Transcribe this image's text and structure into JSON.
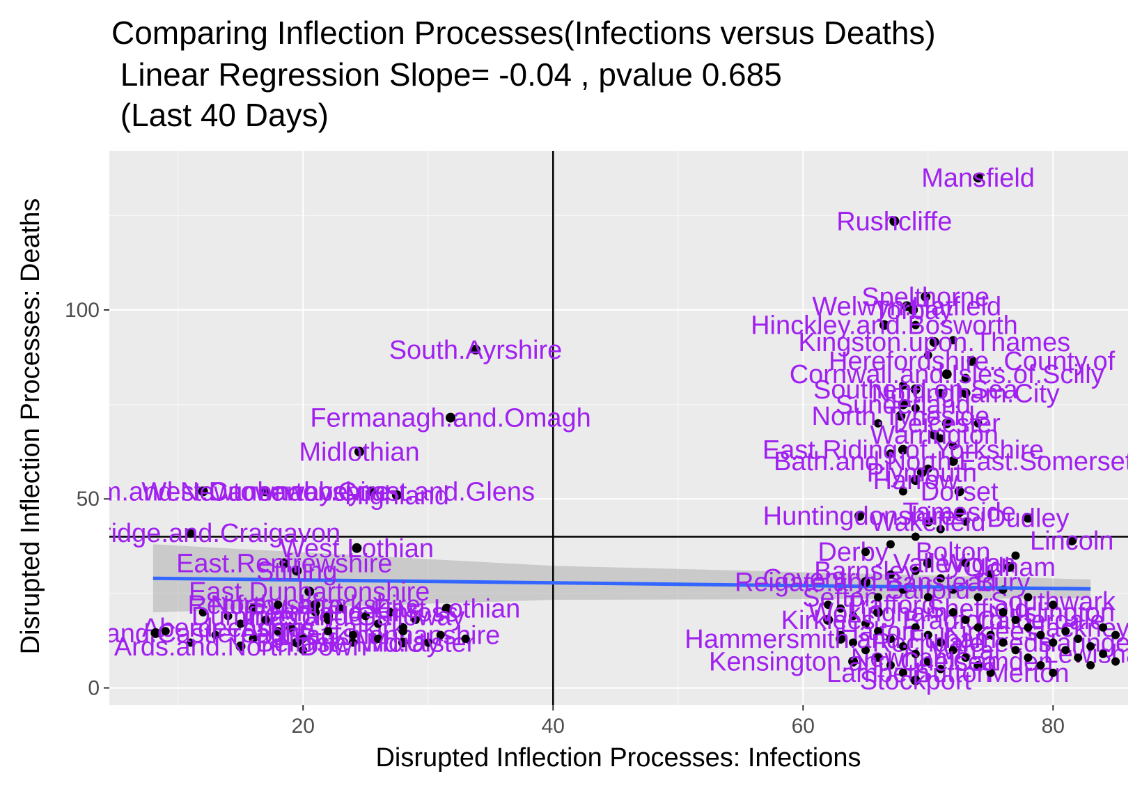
{
  "chart_data": {
    "type": "scatter",
    "title": "Comparing Inflection Processes(Infections versus Deaths)",
    "subtitle": " Linear Regression Slope= -0.04 , pvalue 0.685",
    "subtitle2": " (Last 40 Days)",
    "xlabel": "Disrupted Inflection Processes: Infections",
    "ylabel": "Disrupted Inflection Processes: Deaths",
    "xlim": [
      4.5,
      86
    ],
    "ylim": [
      -4.5,
      142
    ],
    "xticks": [
      20,
      40,
      60,
      80
    ],
    "yticks": [
      0,
      50,
      100
    ],
    "vline": 40,
    "hline": 40,
    "grid": true,
    "label_color": "#a020f0",
    "point_color": "#000000",
    "regression": {
      "x": [
        8,
        83
      ],
      "y": [
        29,
        26.2
      ],
      "color": "#3366ff",
      "ci_start": [
        18,
        40
      ],
      "ci_mid": [
        26,
        32
      ],
      "ci_end": [
        24,
        28.5
      ]
    },
    "labeled_points": [
      {
        "x": 74,
        "y": 135,
        "label": "Mansfield"
      },
      {
        "x": 67.3,
        "y": 123.5,
        "label": "Rushcliffe"
      },
      {
        "x": 69.8,
        "y": 103.5,
        "label": "Spelthorne"
      },
      {
        "x": 68.3,
        "y": 101,
        "label": "Welwyn.Hatfield"
      },
      {
        "x": 68.8,
        "y": 100,
        "label": "Torbay"
      },
      {
        "x": 66.5,
        "y": 96,
        "label": "Hinckley.and.Bosworth"
      },
      {
        "x": 33.8,
        "y": 89.5,
        "label": "South.Ayrshire"
      },
      {
        "x": 70.5,
        "y": 91.5,
        "label": "Kingston.upon.Thames"
      },
      {
        "x": 73.5,
        "y": 86.5,
        "label": "Herefordshire..County.of"
      },
      {
        "x": 71.5,
        "y": 83,
        "label": "Cornwall.and.Isles.of.Scilly"
      },
      {
        "x": 69,
        "y": 79,
        "label": "Southend.on.Sea"
      },
      {
        "x": 73,
        "y": 78,
        "label": "Nottingham.City"
      },
      {
        "x": 68,
        "y": 75,
        "label": "Sunderland"
      },
      {
        "x": 31.8,
        "y": 71.5,
        "label": "Fermanagh.and.Omagh"
      },
      {
        "x": 67.8,
        "y": 72,
        "label": "North.Tyneside"
      },
      {
        "x": 71.5,
        "y": 70,
        "label": "Leicester"
      },
      {
        "x": 70.5,
        "y": 67,
        "label": "Warrington"
      },
      {
        "x": 24.5,
        "y": 62.5,
        "label": "Midlothian"
      },
      {
        "x": 68,
        "y": 63,
        "label": "East.Riding.of.Yorkshire"
      },
      {
        "x": 72,
        "y": 60,
        "label": "Bath.and.North.East.Somerset"
      },
      {
        "x": 69.5,
        "y": 57,
        "label": "Plymouth"
      },
      {
        "x": 69,
        "y": 55,
        "label": "Harrow"
      },
      {
        "x": 72.5,
        "y": 52,
        "label": "Dorset"
      },
      {
        "x": 12,
        "y": 52,
        "label": "Antrim.and.Newtownabbey"
      },
      {
        "x": 17,
        "y": 52,
        "label": "West.Dunbartonshire"
      },
      {
        "x": 25.5,
        "y": 52,
        "label": "Causeway.Coast.and.Glens"
      },
      {
        "x": 27.5,
        "y": 51,
        "label": "Highland"
      },
      {
        "x": 64.5,
        "y": 45.5,
        "label": "Huntingdonshire"
      },
      {
        "x": 72.5,
        "y": 46.5,
        "label": "Tameside"
      },
      {
        "x": 78,
        "y": 45,
        "label": "Dudley"
      },
      {
        "x": 70,
        "y": 44,
        "label": "Wakefield"
      },
      {
        "x": 81.5,
        "y": 39,
        "label": "Lincoln"
      },
      {
        "x": 11,
        "y": 41,
        "label": "Banbridge.and.Craigavon"
      },
      {
        "x": 24.3,
        "y": 37,
        "label": "West.Lothian"
      },
      {
        "x": 18.5,
        "y": 33,
        "label": "East.Renfrewshire"
      },
      {
        "x": 19.5,
        "y": 31,
        "label": "Stirling"
      },
      {
        "x": 70,
        "y": 33,
        "label": "Valley"
      },
      {
        "x": 76.5,
        "y": 32,
        "label": "Oldham"
      },
      {
        "x": 65,
        "y": 28,
        "label": "Reigate.and.Banstead"
      },
      {
        "x": 20.5,
        "y": 25.5,
        "label": "East.Dunbartonshire"
      },
      {
        "x": 21,
        "y": 22,
        "label": "North.Lanarkshire"
      },
      {
        "x": 31.5,
        "y": 21,
        "label": "East.Lothian"
      },
      {
        "x": 22,
        "y": 19,
        "label": "Dumfries.and.Galloway"
      },
      {
        "x": 8.2,
        "y": 14.5,
        "label": "Lisburn.and.Castlereagh"
      },
      {
        "x": 15,
        "y": 11,
        "label": "Ards.and.North.Down"
      },
      {
        "x": 19.5,
        "y": 12,
        "label": "Belfast"
      },
      {
        "x": 28,
        "y": 12,
        "label": "Moray"
      },
      {
        "x": 63,
        "y": 13,
        "label": "Hammersmith.and.Fulham"
      },
      {
        "x": 62,
        "y": 18,
        "label": "Kirklees"
      },
      {
        "x": 66,
        "y": 20,
        "label": "Wokingham"
      },
      {
        "x": 64,
        "y": 7,
        "label": "Kensington.and.Chelsea"
      },
      {
        "x": 69,
        "y": 2,
        "label": "Stockport"
      }
    ],
    "dense_points": [
      [
        62,
        22
      ],
      [
        63,
        21
      ],
      [
        64,
        19
      ],
      [
        65,
        17
      ],
      [
        66,
        15
      ],
      [
        67,
        13
      ],
      [
        68,
        11
      ],
      [
        69,
        9
      ],
      [
        70,
        7
      ],
      [
        71,
        5
      ],
      [
        72,
        20
      ],
      [
        73,
        18
      ],
      [
        74,
        16
      ],
      [
        75,
        14
      ],
      [
        76,
        12
      ],
      [
        77,
        10
      ],
      [
        78,
        8
      ],
      [
        79,
        6
      ],
      [
        80,
        4
      ],
      [
        81,
        15
      ],
      [
        82,
        13
      ],
      [
        83,
        11
      ],
      [
        84,
        9
      ],
      [
        85,
        7
      ],
      [
        63,
        14
      ],
      [
        64,
        12
      ],
      [
        65,
        10
      ],
      [
        66,
        8
      ],
      [
        67,
        6
      ],
      [
        68,
        4
      ],
      [
        69,
        16
      ],
      [
        70,
        14
      ],
      [
        71,
        12
      ],
      [
        72,
        10
      ],
      [
        73,
        8
      ],
      [
        74,
        6
      ],
      [
        75,
        4
      ],
      [
        76,
        20
      ],
      [
        77,
        18
      ],
      [
        78,
        16
      ],
      [
        79,
        14
      ],
      [
        80,
        12
      ],
      [
        81,
        10
      ],
      [
        82,
        8
      ],
      [
        83,
        6
      ],
      [
        84,
        16
      ],
      [
        85,
        14
      ],
      [
        66,
        24
      ],
      [
        68,
        26
      ],
      [
        70,
        24
      ],
      [
        72,
        26
      ],
      [
        74,
        24
      ],
      [
        76,
        26
      ],
      [
        78,
        24
      ],
      [
        80,
        22
      ],
      [
        67,
        30
      ],
      [
        69,
        31
      ],
      [
        71,
        29
      ],
      [
        73,
        33
      ],
      [
        75,
        30
      ],
      [
        77,
        35
      ],
      [
        65,
        36
      ],
      [
        67,
        38
      ],
      [
        69,
        40
      ],
      [
        71,
        42
      ],
      [
        73,
        44
      ],
      [
        68,
        52
      ],
      [
        70,
        58
      ],
      [
        72,
        64
      ],
      [
        74,
        70
      ],
      [
        69,
        74
      ],
      [
        71,
        78
      ],
      [
        73,
        82
      ],
      [
        70,
        88
      ],
      [
        72,
        92
      ],
      [
        69,
        96
      ],
      [
        68,
        80
      ],
      [
        66,
        70
      ],
      [
        67,
        62
      ],
      [
        71,
        66
      ],
      [
        9,
        15
      ],
      [
        11,
        12
      ],
      [
        13,
        14
      ],
      [
        16,
        13
      ],
      [
        18,
        15
      ],
      [
        20,
        13
      ],
      [
        22,
        15
      ],
      [
        24,
        14
      ],
      [
        26,
        13
      ],
      [
        28,
        15
      ],
      [
        30,
        12
      ],
      [
        12,
        20
      ],
      [
        14,
        19
      ],
      [
        16,
        21
      ],
      [
        18,
        22
      ],
      [
        21,
        20
      ],
      [
        23,
        21
      ],
      [
        25,
        19
      ],
      [
        27,
        20
      ],
      [
        29,
        18
      ],
      [
        22,
        18
      ],
      [
        26,
        17
      ],
      [
        28,
        16
      ],
      [
        31,
        14
      ],
      [
        33,
        13
      ],
      [
        15,
        17
      ],
      [
        17,
        18
      ],
      [
        19,
        16
      ],
      [
        24,
        12
      ],
      [
        20,
        10
      ]
    ],
    "bg_labels": [
      {
        "x": 61,
        "y": 29,
        "label": "Coventry"
      },
      {
        "x": 64,
        "y": 36,
        "label": "Derby"
      },
      {
        "x": 65,
        "y": 31,
        "label": "Barnsley"
      },
      {
        "x": 72,
        "y": 36,
        "label": "Bolton"
      },
      {
        "x": 74,
        "y": 33,
        "label": "Wigan"
      },
      {
        "x": 76,
        "y": 28,
        "label": "Bury"
      },
      {
        "x": 63,
        "y": 24,
        "label": "Sefton"
      },
      {
        "x": 70,
        "y": 26,
        "label": "Salford"
      },
      {
        "x": 67,
        "y": 22,
        "label": "Trafford"
      },
      {
        "x": 80,
        "y": 23,
        "label": "Southwark"
      },
      {
        "x": 81,
        "y": 20,
        "label": "Islington"
      },
      {
        "x": 82,
        "y": 16,
        "label": "Hackney"
      },
      {
        "x": 83,
        "y": 12,
        "label": "Haringey"
      },
      {
        "x": 84,
        "y": 9,
        "label": "Lewisham"
      },
      {
        "x": 72,
        "y": 18,
        "label": "Bradford"
      },
      {
        "x": 75,
        "y": 15,
        "label": "Kirklees"
      },
      {
        "x": 70,
        "y": 12,
        "label": "Rochdale"
      },
      {
        "x": 73,
        "y": 10,
        "label": "Wirral"
      },
      {
        "x": 76,
        "y": 7,
        "label": "Camden"
      },
      {
        "x": 72,
        "y": 4,
        "label": "Sutton"
      },
      {
        "x": 78,
        "y": 4,
        "label": "Merton"
      },
      {
        "x": 66,
        "y": 15,
        "label": "Halton"
      },
      {
        "x": 68,
        "y": 8,
        "label": "Newham"
      },
      {
        "x": 77,
        "y": 12,
        "label": "Leeds"
      },
      {
        "x": 79,
        "y": 18,
        "label": "Calderdale"
      },
      {
        "x": 74,
        "y": 21,
        "label": "Sheffield"
      },
      {
        "x": 66,
        "y": 4,
        "label": "Lambeth"
      },
      {
        "x": 18,
        "y": 16,
        "label": "Angus"
      },
      {
        "x": 25,
        "y": 16,
        "label": "Falkirk"
      },
      {
        "x": 22,
        "y": 12,
        "label": "Fife"
      },
      {
        "x": 27,
        "y": 14,
        "label": "Clackmannanshire"
      },
      {
        "x": 20,
        "y": 19,
        "label": "Inverclyde"
      },
      {
        "x": 29,
        "y": 12,
        "label": "Mid.Ulster"
      },
      {
        "x": 14,
        "y": 16,
        "label": "Aberdeenshire"
      },
      {
        "x": 17,
        "y": 22,
        "label": "Renfrewshire"
      },
      {
        "x": 24,
        "y": 20,
        "label": "Perth.and.Kinross"
      }
    ]
  }
}
